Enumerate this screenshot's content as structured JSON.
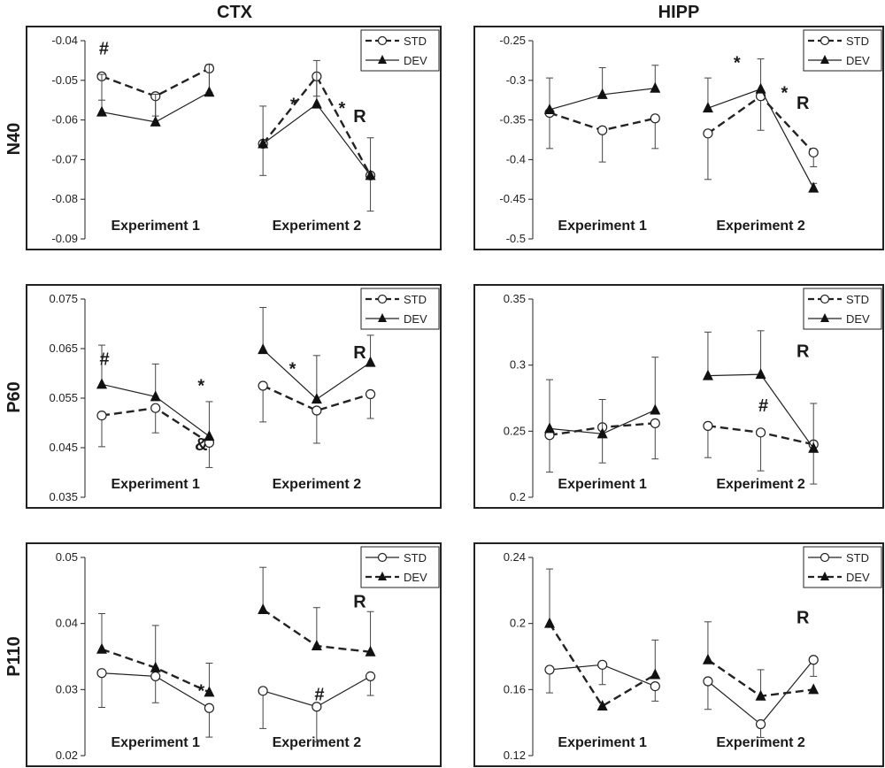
{
  "column_titles": [
    "CTX",
    "HIPP"
  ],
  "row_titles": [
    "N40",
    "P60",
    "P110"
  ],
  "chart_data": [
    {
      "type": "line",
      "panel": "N40 CTX",
      "yticks": [
        "-0.04",
        "-0.05",
        "-0.06",
        "-0.07",
        "-0.08",
        "-0.09"
      ],
      "ylim": [
        -0.09,
        -0.04
      ],
      "groups": [
        "Experiment 1",
        "Experiment 2"
      ],
      "legend": {
        "entries": [
          "STD",
          "DEV"
        ],
        "solid": "DEV"
      },
      "series": [
        {
          "name": "STD",
          "marker": "open-circle",
          "exp1": [
            -0.049,
            -0.054,
            -0.047
          ],
          "exp2": [
            -0.066,
            -0.049,
            -0.074
          ],
          "err1": [
            0.006,
            0.005,
            0.006
          ],
          "err2": [
            0.008,
            0.005,
            0.009
          ]
        },
        {
          "name": "DEV",
          "marker": "filled-triangle",
          "exp1": [
            -0.058,
            -0.0605,
            -0.053
          ],
          "exp2": [
            -0.066,
            -0.056,
            -0.074
          ],
          "err1": [
            0.0095,
            0.007,
            0.007
          ],
          "err2": [
            0.0095,
            0.011,
            0.0095
          ]
        }
      ],
      "annotations": [
        {
          "text": "#",
          "x": 1.04,
          "y": -0.0435
        },
        {
          "text": "*",
          "x": 4.57,
          "y": -0.0575
        },
        {
          "text": "*",
          "x": 5.47,
          "y": -0.0585
        },
        {
          "text": "R",
          "x": 5.8,
          "y": -0.0605
        }
      ]
    },
    {
      "type": "line",
      "panel": "N40 HIPP",
      "yticks": [
        "-0.25",
        "-0.3",
        "-0.35",
        "-0.4",
        "-0.45",
        "-0.5"
      ],
      "ylim": [
        -0.5,
        -0.25
      ],
      "groups": [
        "Experiment 1",
        "Experiment 2"
      ],
      "legend": {
        "entries": [
          "STD",
          "DEV"
        ],
        "solid": "DEV"
      },
      "series": [
        {
          "name": "STD",
          "marker": "open-circle",
          "exp1": [
            -0.341,
            -0.363,
            -0.348
          ],
          "exp2": [
            -0.367,
            -0.32,
            -0.391
          ],
          "err1": [
            0.045,
            0.04,
            0.038
          ],
          "err2": [
            0.058,
            0.043,
            0.018
          ]
        },
        {
          "name": "DEV",
          "marker": "filled-triangle",
          "exp1": [
            -0.337,
            -0.318,
            -0.31
          ],
          "exp2": [
            -0.335,
            -0.311,
            -0.436
          ],
          "err1": [
            0.04,
            0.034,
            0.029
          ],
          "err2": [
            0.038,
            0.038,
            0.006
          ]
        }
      ],
      "annotations": [
        {
          "text": "*",
          "x": 4.55,
          "y": -0.285
        },
        {
          "text": "*",
          "x": 5.45,
          "y": -0.323
        },
        {
          "text": "R",
          "x": 5.8,
          "y": -0.336
        }
      ]
    },
    {
      "type": "line",
      "panel": "P60 CTX",
      "yticks": [
        "0.075",
        "0.065",
        "0.055",
        "0.045",
        "0.035"
      ],
      "ylim": [
        0.035,
        0.075
      ],
      "groups": [
        "Experiment 1",
        "Experiment 2"
      ],
      "legend": {
        "entries": [
          "STD",
          "DEV"
        ],
        "solid": "DEV"
      },
      "series": [
        {
          "name": "STD",
          "marker": "open-circle",
          "exp1": [
            0.0515,
            0.053,
            0.046
          ],
          "exp2": [
            0.0575,
            0.0525,
            0.0558
          ],
          "err1": [
            0.0063,
            0.005,
            0.005
          ],
          "err2": [
            0.0073,
            0.0066,
            0.0049
          ]
        },
        {
          "name": "DEV",
          "marker": "filled-triangle",
          "exp1": [
            0.0578,
            0.0553,
            0.0473
          ],
          "exp2": [
            0.0648,
            0.0548,
            0.0622
          ],
          "err1": [
            0.0079,
            0.0066,
            0.007
          ],
          "err2": [
            0.0085,
            0.0088,
            0.0055
          ]
        }
      ],
      "annotations": [
        {
          "text": "#",
          "x": 1.05,
          "y": 0.0617
        },
        {
          "text": "*",
          "x": 2.85,
          "y": 0.0563
        },
        {
          "text": "&",
          "x": 2.85,
          "y": 0.0445
        },
        {
          "text": "*",
          "x": 4.55,
          "y": 0.0597
        },
        {
          "text": "R",
          "x": 5.8,
          "y": 0.063
        }
      ]
    },
    {
      "type": "line",
      "panel": "P60 HIPP",
      "yticks": [
        "0.35",
        "0.3",
        "0.25",
        "0.2"
      ],
      "ylim": [
        0.2,
        0.35
      ],
      "groups": [
        "Experiment 1",
        "Experiment 2"
      ],
      "legend": {
        "entries": [
          "STD",
          "DEV"
        ],
        "solid": "DEV"
      },
      "series": [
        {
          "name": "STD",
          "marker": "open-circle",
          "exp1": [
            0.247,
            0.253,
            0.256
          ],
          "exp2": [
            0.254,
            0.249,
            0.24
          ],
          "err1": [
            0.028,
            0.027,
            0.027
          ],
          "err2": [
            0.024,
            0.029,
            0.03
          ]
        },
        {
          "name": "DEV",
          "marker": "filled-triangle",
          "exp1": [
            0.252,
            0.248,
            0.266
          ],
          "exp2": [
            0.292,
            0.293,
            0.237
          ],
          "err1": [
            0.037,
            0.026,
            0.04
          ],
          "err2": [
            0.033,
            0.033,
            0.034
          ]
        }
      ],
      "annotations": [
        {
          "text": "R",
          "x": 5.8,
          "y": 0.306
        },
        {
          "text": "#",
          "x": 5.05,
          "y": 0.265
        }
      ]
    },
    {
      "type": "line",
      "panel": "P110 CTX",
      "yticks": [
        "0.05",
        "0.04",
        "0.03",
        "0.02"
      ],
      "ylim": [
        0.02,
        0.05
      ],
      "groups": [
        "Experiment 1",
        "Experiment 2"
      ],
      "legend": {
        "entries": [
          "STD",
          "DEV"
        ],
        "solid": "STD"
      },
      "series": [
        {
          "name": "STD",
          "marker": "open-circle",
          "exp1": [
            0.0325,
            0.032,
            0.0272
          ],
          "exp2": [
            0.0298,
            0.0274,
            0.032
          ],
          "err1": [
            0.0052,
            0.004,
            0.0044
          ],
          "err2": [
            0.0057,
            0.0053,
            0.0029
          ]
        },
        {
          "name": "DEV",
          "marker": "filled-triangle",
          "exp1": [
            0.0361,
            0.0333,
            0.0296
          ],
          "exp2": [
            0.0421,
            0.0366,
            0.0357
          ],
          "err1": [
            0.0054,
            0.0064,
            0.0044
          ],
          "err2": [
            0.0064,
            0.0058,
            0.0061
          ]
        }
      ],
      "annotations": [
        {
          "text": "*",
          "x": 2.85,
          "y": 0.0289
        },
        {
          "text": "#",
          "x": 5.05,
          "y": 0.0284
        },
        {
          "text": "R",
          "x": 5.8,
          "y": 0.0424
        }
      ]
    },
    {
      "type": "line",
      "panel": "P110 HIPP",
      "yticks": [
        "0.24",
        "0.2",
        "0.16",
        "0.12"
      ],
      "ylim": [
        0.12,
        0.24
      ],
      "groups": [
        "Experiment 1",
        "Experiment 2"
      ],
      "legend": {
        "entries": [
          "STD",
          "DEV"
        ],
        "solid": "STD"
      },
      "series": [
        {
          "name": "STD",
          "marker": "open-circle",
          "exp1": [
            0.172,
            0.175,
            0.162
          ],
          "exp2": [
            0.165,
            0.139,
            0.178
          ],
          "err1": [
            0.014,
            0.012,
            0.009
          ],
          "err2": [
            0.017,
            0.008,
            0.01
          ]
        },
        {
          "name": "DEV",
          "marker": "filled-triangle",
          "exp1": [
            0.2,
            0.15,
            0.169
          ],
          "exp2": [
            0.178,
            0.156,
            0.16
          ],
          "err1": [
            0.033,
            0.0,
            0.021
          ],
          "err2": [
            0.023,
            0.016,
            0.0
          ]
        }
      ],
      "annotations": [
        {
          "text": "R",
          "x": 5.8,
          "y": 0.2
        }
      ]
    }
  ]
}
